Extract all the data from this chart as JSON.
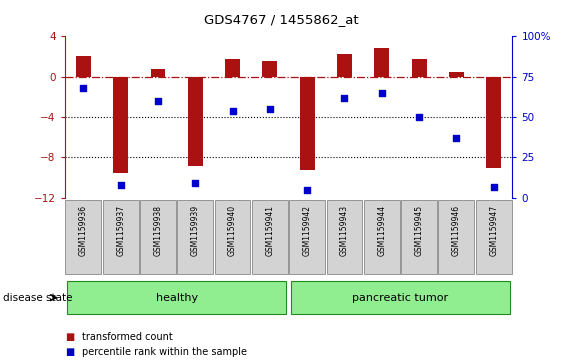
{
  "title": "GDS4767 / 1455862_at",
  "samples": [
    "GSM1159936",
    "GSM1159937",
    "GSM1159938",
    "GSM1159939",
    "GSM1159940",
    "GSM1159941",
    "GSM1159942",
    "GSM1159943",
    "GSM1159944",
    "GSM1159945",
    "GSM1159946",
    "GSM1159947"
  ],
  "transformed_count": [
    2.0,
    -9.5,
    0.8,
    -8.8,
    1.8,
    1.6,
    -9.2,
    2.2,
    2.8,
    1.8,
    0.5,
    -9.0
  ],
  "percentile_rank": [
    68,
    8,
    60,
    9,
    54,
    55,
    5,
    62,
    65,
    50,
    37,
    7
  ],
  "bar_color": "#aa1111",
  "dot_color": "#0000cc",
  "ylim_left": [
    -12,
    4
  ],
  "ylim_right": [
    0,
    100
  ],
  "yticks_left": [
    4,
    0,
    -4,
    -8,
    -12
  ],
  "yticks_right": [
    100,
    75,
    50,
    25,
    0
  ],
  "ytick_labels_right": [
    "100%",
    "75",
    "50",
    "25",
    "0"
  ],
  "hline_y": 0,
  "dotted_hlines": [
    -4,
    -8
  ],
  "group_ranges": [
    [
      0,
      6,
      "healthy"
    ],
    [
      6,
      12,
      "pancreatic tumor"
    ]
  ],
  "disease_state_label": "disease state",
  "legend_items": [
    {
      "color": "#aa1111",
      "label": "transformed count"
    },
    {
      "color": "#0000cc",
      "label": "percentile rank within the sample"
    }
  ],
  "plot_bg_color": "#ffffff",
  "bar_width": 0.4,
  "group_color": "#90ee90",
  "group_edge_color": "#228B22",
  "tick_box_color": "#d3d3d3"
}
